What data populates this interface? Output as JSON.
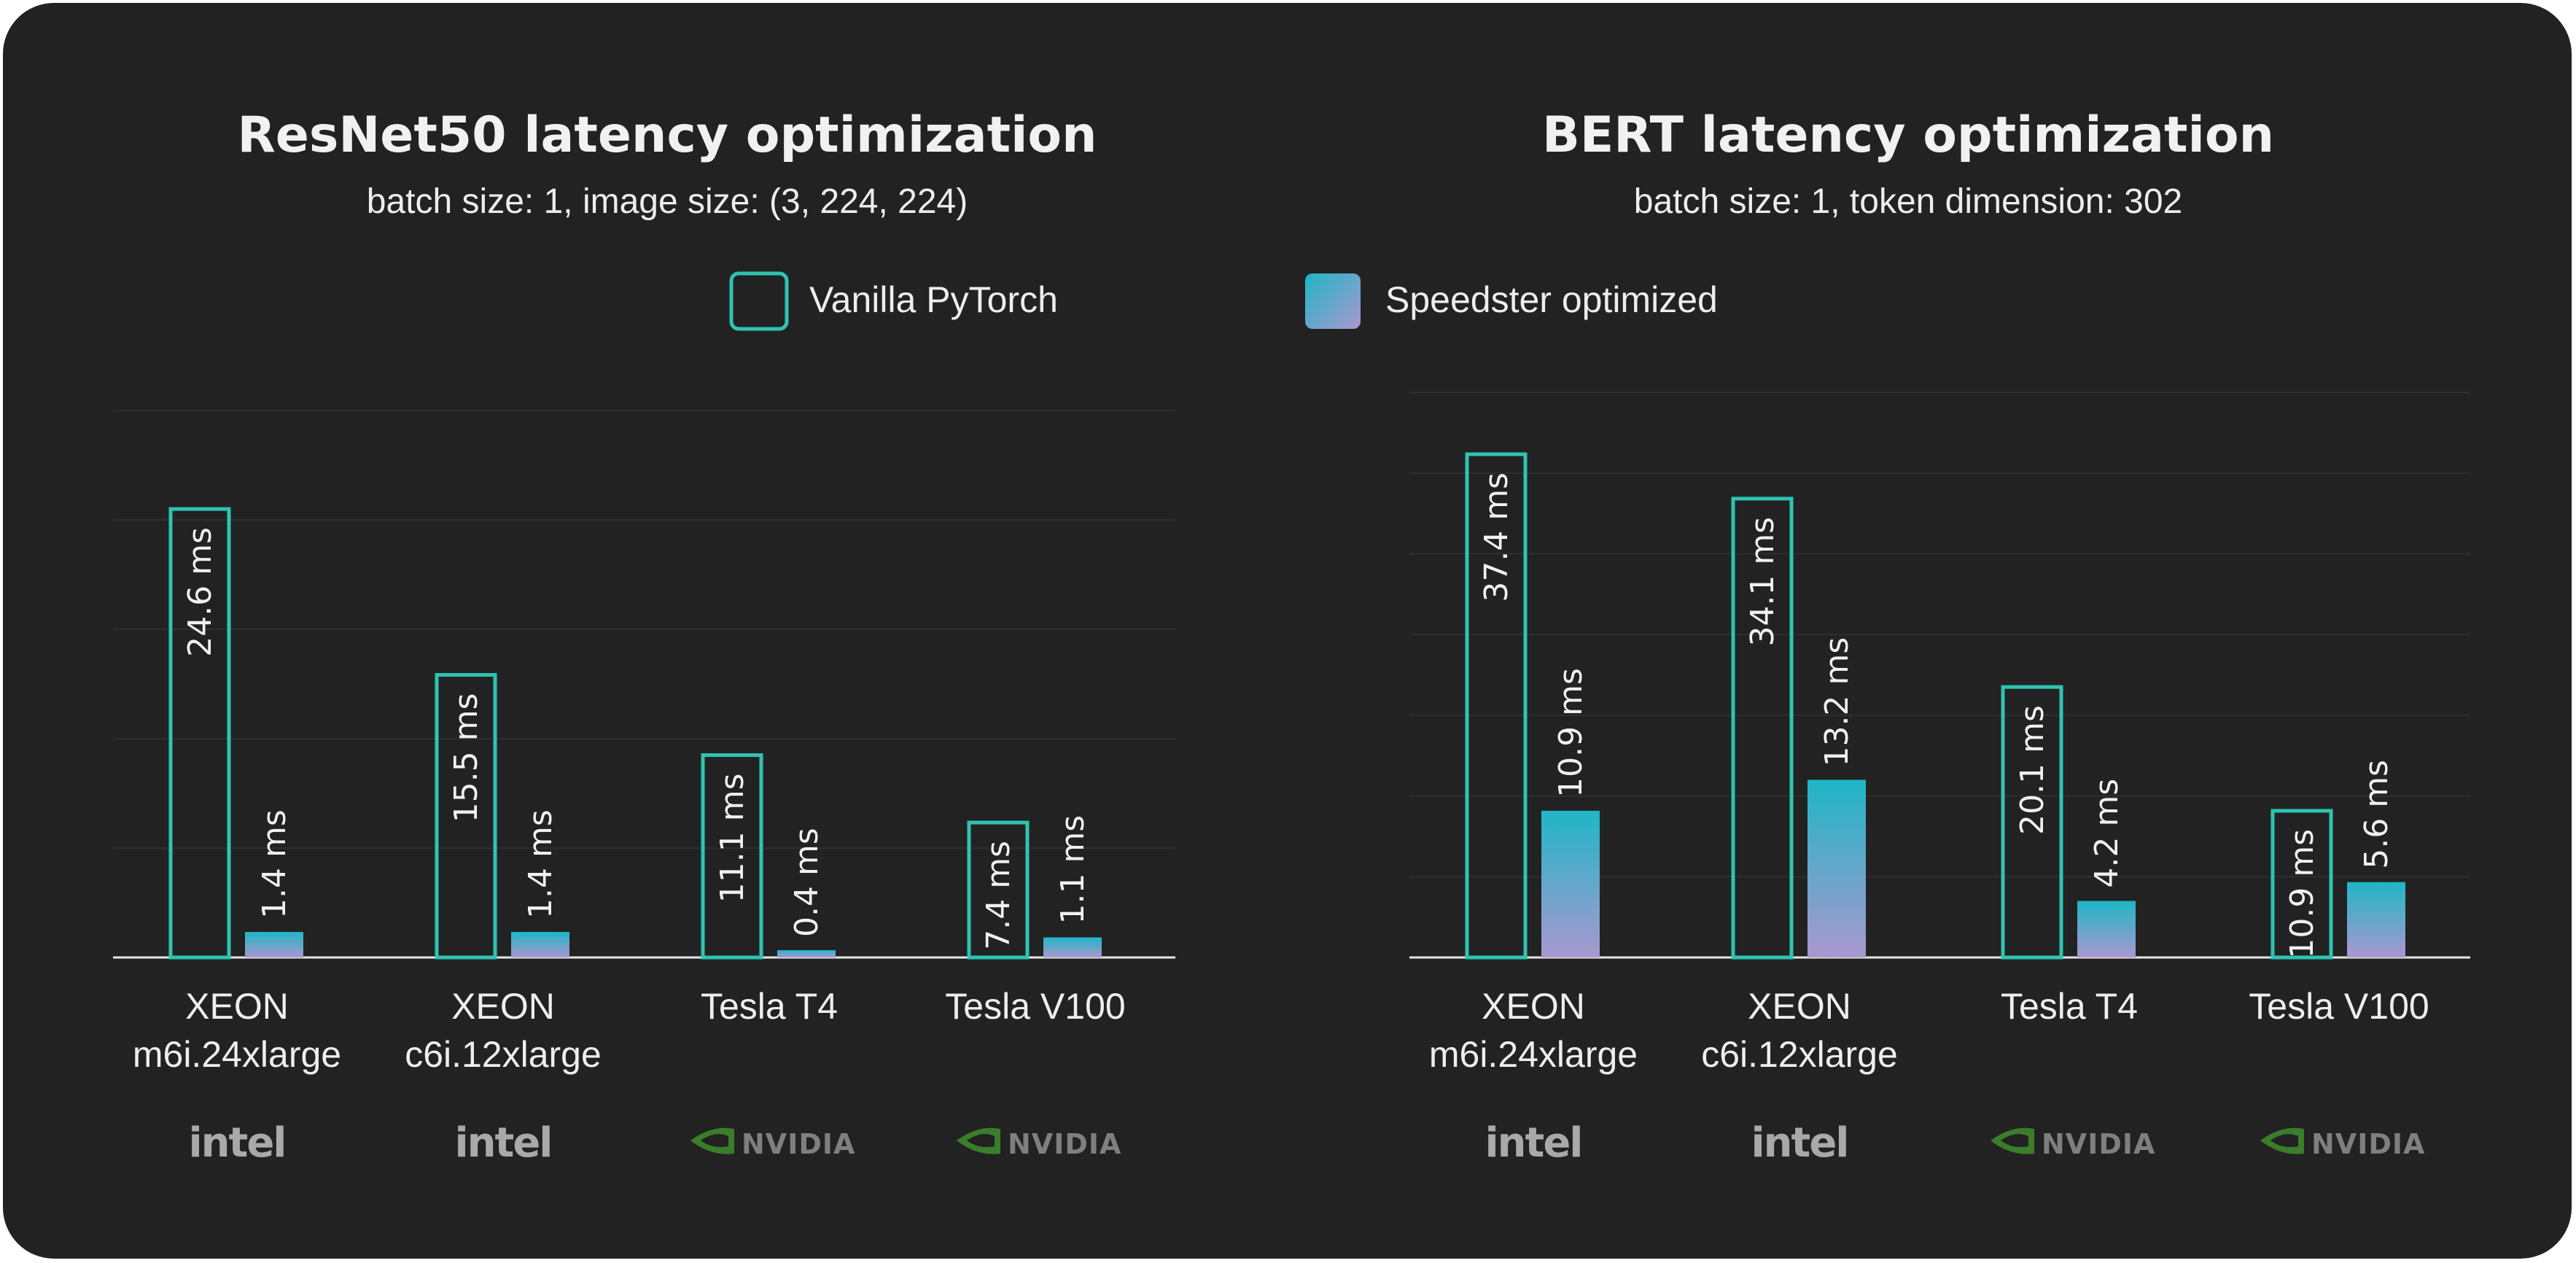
{
  "colors": {
    "card_background": "#222222",
    "vanilla_outline": "#2ec4b1",
    "speedster_top": "#1fb6c6",
    "speedster_bottom": "#a998cf",
    "gridline": "#2f2f2f",
    "axis": "#e6e6e6",
    "text": "#ededed",
    "intel_brand": "#a9a9a9",
    "nvidia_brand": "#7f7f7f",
    "nvidia_icon": "#3a7d2a"
  },
  "legend": {
    "vanilla": "Vanilla PyTorch",
    "speedster": "Speedster optimized"
  },
  "chart_data": [
    {
      "type": "bar",
      "title": "ResNet50 latency optimization",
      "subtitle": "batch size: 1, image size: (3, 224, 224)",
      "xlabel": "",
      "ylabel": "",
      "ylim": [
        0,
        30
      ],
      "grid": true,
      "unit": "ms",
      "categories": [
        {
          "line1": "XEON",
          "line2": "m6i.24xlarge",
          "brand": "intel"
        },
        {
          "line1": "XEON",
          "line2": "c6i.12xlarge",
          "brand": "intel"
        },
        {
          "line1": "Tesla T4",
          "line2": "",
          "brand": "NVIDIA"
        },
        {
          "line1": "Tesla V100",
          "line2": "",
          "brand": "NVIDIA"
        }
      ],
      "series": [
        {
          "name": "Vanilla PyTorch",
          "values": [
            24.6,
            15.5,
            11.1,
            7.4
          ],
          "labels": [
            "24.6 ms",
            "15.5 ms",
            "11.1 ms",
            "7.4 ms"
          ]
        },
        {
          "name": "Speedster optimized",
          "values": [
            1.4,
            1.4,
            0.4,
            1.1
          ],
          "labels": [
            "1.4 ms",
            "1.4 ms",
            "0.4 ms",
            "1.1 ms"
          ]
        }
      ]
    },
    {
      "type": "bar",
      "title": "BERT latency optimization",
      "subtitle": "batch size: 1, token dimension: 302",
      "xlabel": "",
      "ylabel": "",
      "ylim": [
        0,
        42
      ],
      "grid": true,
      "unit": "ms",
      "categories": [
        {
          "line1": "XEON",
          "line2": "m6i.24xlarge",
          "brand": "intel"
        },
        {
          "line1": "XEON",
          "line2": "c6i.12xlarge",
          "brand": "intel"
        },
        {
          "line1": "Tesla T4",
          "line2": "",
          "brand": "NVIDIA"
        },
        {
          "line1": "Tesla V100",
          "line2": "",
          "brand": "NVIDIA"
        }
      ],
      "series": [
        {
          "name": "Vanilla PyTorch",
          "values": [
            37.4,
            34.1,
            20.1,
            10.9
          ],
          "labels": [
            "37.4 ms",
            "34.1 ms",
            "20.1 ms",
            "10.9 ms"
          ]
        },
        {
          "name": "Speedster optimized",
          "values": [
            10.9,
            13.2,
            4.2,
            5.6
          ],
          "labels": [
            "10.9 ms",
            "13.2 ms",
            "4.2 ms",
            "5.6 ms"
          ]
        }
      ]
    }
  ]
}
